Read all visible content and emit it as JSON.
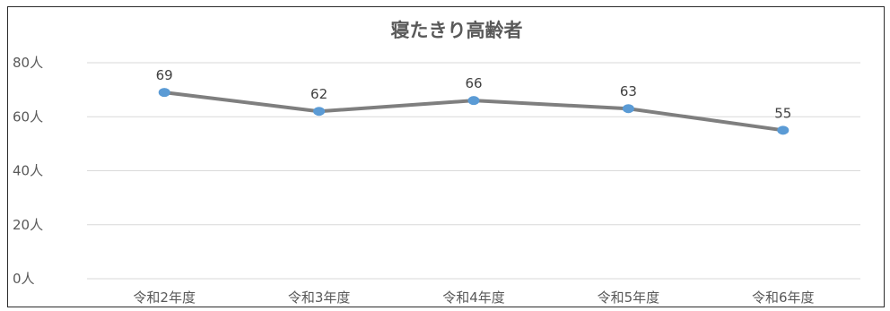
{
  "chart_data": {
    "type": "line",
    "title": "寝たきり高齢者",
    "categories": [
      "令和2年度",
      "令和3年度",
      "令和4年度",
      "令和5年度",
      "令和6年度"
    ],
    "series": [
      {
        "values": [
          69,
          62,
          66,
          63,
          55
        ]
      }
    ],
    "y_ticks": [
      "0人",
      "20人",
      "40人",
      "60人",
      "80人"
    ],
    "ylim": [
      0,
      80
    ],
    "y_tick_values": [
      0,
      20,
      40,
      60,
      80
    ],
    "grid": true,
    "legend": "none",
    "colors": {
      "line": "#7f7f7f",
      "marker": "#5b9bd5",
      "grid": "#d9d9d9",
      "text": "#595959"
    }
  }
}
